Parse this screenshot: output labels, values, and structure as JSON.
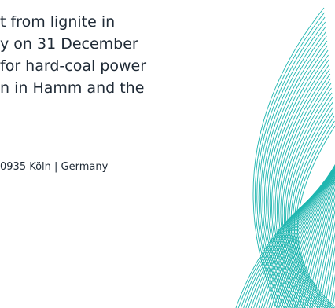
{
  "body_text": {
    "lines": [
      "t from lignite in",
      "y on 31 December",
      "for hard-coal power",
      "n in Hamm and the"
    ]
  },
  "footer": {
    "address": "0935 Köln | Germany"
  },
  "decoration": {
    "line_color": "#1fb6b0",
    "icon": "wave-lines-pattern"
  }
}
